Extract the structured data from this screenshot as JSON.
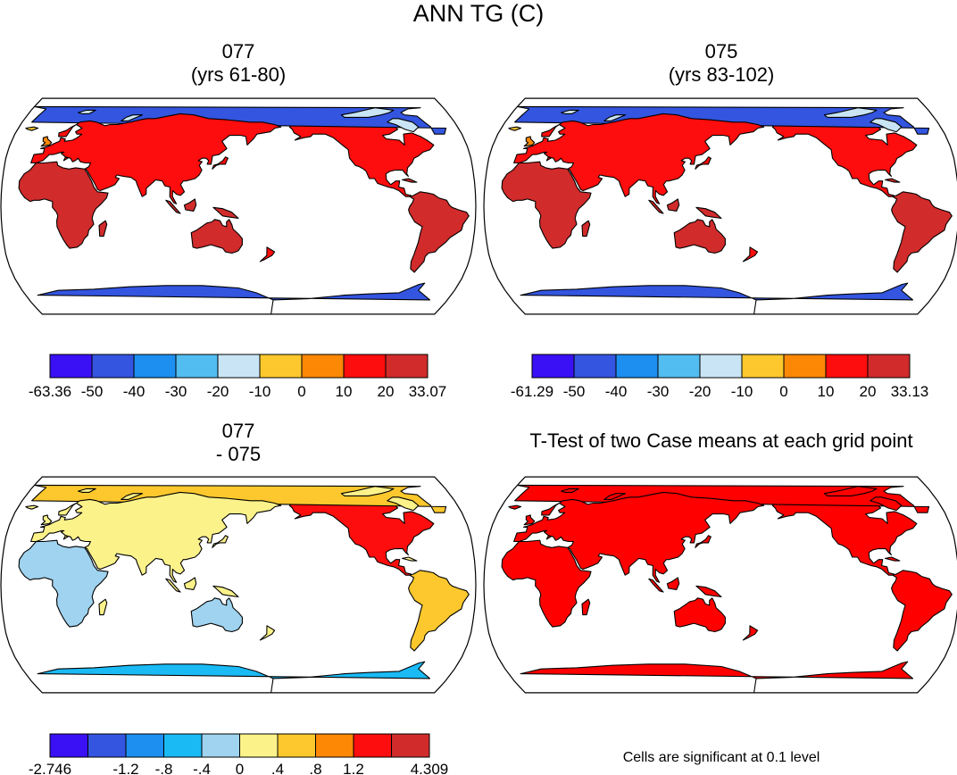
{
  "figure_title": "ANN TG (C)",
  "colors": {
    "land_outline": "#000000",
    "ttest_significant": "#ff0000",
    "ocean": "#ffffff"
  },
  "chart_data": [
    {
      "type": "heatmap",
      "projection": "robinson",
      "title_lines": [
        "077",
        "(yrs 61-80)"
      ],
      "field": "annual mean ground temperature",
      "colorbar": {
        "colors": [
          "#3a10f5",
          "#3355e0",
          "#1c8ff0",
          "#52bdf0",
          "#c9e5f5",
          "#fcc82d",
          "#fc8805",
          "#fd0d0d",
          "#d12b2b"
        ],
        "labels": [
          "-63.36",
          "-50",
          "-40",
          "-30",
          "-20",
          "-10",
          "0",
          "10",
          "20",
          "33.07"
        ],
        "min": -63.36,
        "max": 33.07
      }
    },
    {
      "type": "heatmap",
      "projection": "robinson",
      "title_lines": [
        "075",
        "(yrs 83-102)"
      ],
      "field": "annual mean ground temperature",
      "colorbar": {
        "colors": [
          "#3a10f5",
          "#3355e0",
          "#1c8ff0",
          "#52bdf0",
          "#c9e5f5",
          "#fcc82d",
          "#fc8805",
          "#fd0d0d",
          "#d12b2b"
        ],
        "labels": [
          "-61.29",
          "-50",
          "-40",
          "-30",
          "-20",
          "-10",
          "0",
          "10",
          "20",
          "33.13"
        ],
        "min": -61.29,
        "max": 33.13
      }
    },
    {
      "type": "heatmap",
      "projection": "robinson",
      "title_lines": [
        "077",
        "- 075"
      ],
      "field": "difference 077 minus 075",
      "colorbar": {
        "colors": [
          "#3a10f5",
          "#3355e0",
          "#1c8ff0",
          "#1abaf5",
          "#9fd3ef",
          "#fcf28a",
          "#fcc82d",
          "#fc8805",
          "#fd0d0d",
          "#d12b2b"
        ],
        "labels": [
          "-2.746",
          "-1.2",
          "-.8",
          "-.4",
          "0",
          ".4",
          ".8",
          "1.2",
          "4.309"
        ],
        "min": -2.746,
        "max": 4.309
      }
    },
    {
      "type": "heatmap",
      "projection": "robinson",
      "title_lines": [
        "T-Test of two Case means at each grid point"
      ],
      "field": "significance mask",
      "note": "Cells are significant at 0.1 level"
    }
  ]
}
